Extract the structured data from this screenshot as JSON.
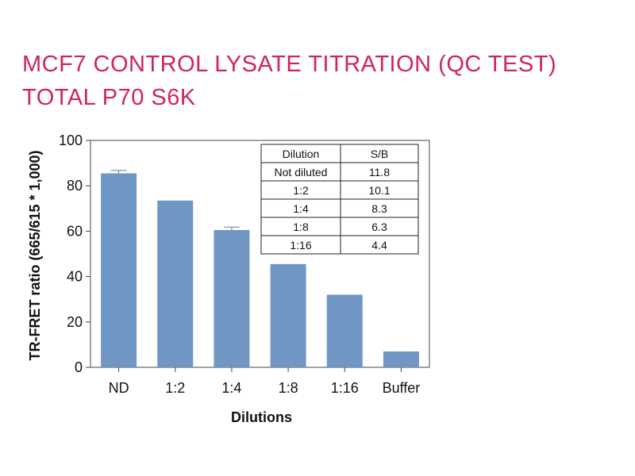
{
  "title": {
    "line1": "MCF7 CONTROL LYSATE TITRATION (QC TEST)",
    "line2": "TOTAL P70 S6K",
    "color": "#d0245c"
  },
  "chart_data": {
    "type": "bar",
    "categories": [
      "ND",
      "1:2",
      "1:4",
      "1:8",
      "1:16",
      "Buffer"
    ],
    "values": [
      85.5,
      73.5,
      60.5,
      45.5,
      32,
      7
    ],
    "error_tops": [
      86.8,
      null,
      61.8,
      null,
      null,
      null
    ],
    "xlabel": "Dilutions",
    "ylabel": "TR-FRET ratio (665/615 * 1,000)",
    "ylim": [
      0,
      100
    ],
    "yticks": [
      0,
      20,
      40,
      60,
      80,
      100
    ],
    "bar_color": "#7096c4",
    "grid": false,
    "table": {
      "headers": [
        "Dilution",
        "S/B"
      ],
      "rows": [
        [
          "Not diluted",
          "11.8"
        ],
        [
          "1:2",
          "10.1"
        ],
        [
          "1:4",
          "8.3"
        ],
        [
          "1:8",
          "6.3"
        ],
        [
          "1:16",
          "4.4"
        ]
      ]
    }
  }
}
